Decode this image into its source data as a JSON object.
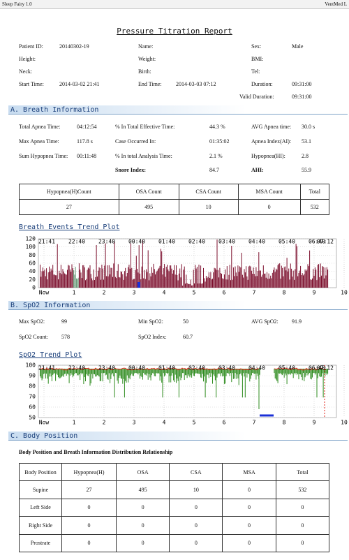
{
  "header": {
    "app": "Sleep Fairy 1.0",
    "vendor": "VentMed L"
  },
  "title": "Pressure Titration Report",
  "patient": [
    {
      "label": "Patient ID:",
      "value": "20140302-19"
    },
    {
      "label": "Name:"
    },
    {
      "label": "Sex:",
      "value": "Male"
    },
    {
      "label": "Height:"
    },
    {
      "label": "Weight:"
    },
    {
      "label": "BMI:"
    },
    {
      "label": "Neck:"
    },
    {
      "label": "Birth:"
    },
    {
      "label": "Tel:"
    },
    {
      "label": "Start Time:",
      "value": "2014-03-02 21:41"
    },
    {
      "label": "End Time:",
      "value": "2014-03-03 07:12"
    },
    {
      "label": "Duration:",
      "value": "09:31:00"
    },
    {
      "label": "Valid Duration:",
      "value": "09:31:00"
    }
  ],
  "breath": {
    "heading": "A.  Breath Information",
    "fields": [
      {
        "label": "Total Apnea Time:",
        "value": "04:12:54"
      },
      {
        "label": "% In Total Effective Time:",
        "value": "44.3 %"
      },
      {
        "label": "AVG Apnea time:",
        "value": "30.0 s"
      },
      {
        "label": "Max Apnea Time:",
        "value": "117.8 s"
      },
      {
        "label": "Case Occurred In:",
        "value": "01:35:02"
      },
      {
        "label": "Apnea Index(AI):",
        "value": "53.1"
      },
      {
        "label": "Sum Hypopnea Time:",
        "value": "00:11:48"
      },
      {
        "label": "% In total Analysis Time:",
        "value": "2.1 %"
      },
      {
        "label": "Hypopnea(HI):",
        "value": "2.8"
      },
      {
        "label": "Snore Index:",
        "value": "84.7"
      },
      {
        "label": "AHI:",
        "value": "55.9"
      }
    ],
    "table": {
      "header": [
        "Hypopnea(H)Count",
        "OSA Count",
        "CSA Count",
        "MSA Count",
        "Total"
      ],
      "rows": [
        [
          "27",
          "495",
          "10",
          "0",
          "532"
        ]
      ]
    }
  },
  "breath_plot": {
    "title": "Breath Events Trend Plot",
    "ylim": [
      0,
      120
    ],
    "yticks": [
      0,
      20,
      40,
      60,
      80,
      100,
      120
    ],
    "time_labels": [
      "21:41",
      "22:40",
      "23:40",
      "00:40",
      "01:40",
      "02:40",
      "03:40",
      "04:40",
      "05:40",
      "06:40",
      "07:12"
    ],
    "hour_labels": [
      "Now",
      "1",
      "2",
      "3",
      "4",
      "5",
      "6",
      "7",
      "8",
      "9",
      "10"
    ]
  },
  "spo2": {
    "heading": "B.  SpO2 Information",
    "fields": [
      {
        "label": "Max SpO2:",
        "value": "99"
      },
      {
        "label": "Min SpO2:",
        "value": "50"
      },
      {
        "label": "AVG SpO2:",
        "value": "91.9"
      },
      {
        "label": "SpO2 Count:",
        "value": "578"
      },
      {
        "label": "SpO2 Index:",
        "value": "60.7"
      }
    ]
  },
  "spo2_plot": {
    "title": "SpO2 Trend Plot",
    "ylim": [
      50,
      100
    ],
    "yticks": [
      50,
      60,
      70,
      80,
      90,
      100
    ],
    "time_labels": [
      "21:41",
      "22:40",
      "23:40",
      "00:40",
      "01:40",
      "02:40",
      "03:40",
      "04:40",
      "05:40",
      "06:40",
      "07:12"
    ],
    "hour_labels": [
      "Now",
      "1",
      "2",
      "3",
      "4",
      "5",
      "6",
      "7",
      "8",
      "9",
      "10"
    ]
  },
  "position": {
    "heading": "C.  Body Position",
    "subtitle": "Body Position and Breath Information Distribution Relationship",
    "table": {
      "header": [
        "Body Position",
        "Hypopnea(H)",
        "OSA",
        "CSA",
        "MSA",
        "Total"
      ],
      "rows": [
        [
          "Supine",
          "27",
          "495",
          "10",
          "0",
          "532"
        ],
        [
          "Left Side",
          "0",
          "0",
          "0",
          "0",
          "0"
        ],
        [
          "Right Side",
          "0",
          "0",
          "0",
          "0",
          "0"
        ],
        [
          "Prostrate",
          "0",
          "0",
          "0",
          "0",
          "0"
        ]
      ]
    }
  }
}
